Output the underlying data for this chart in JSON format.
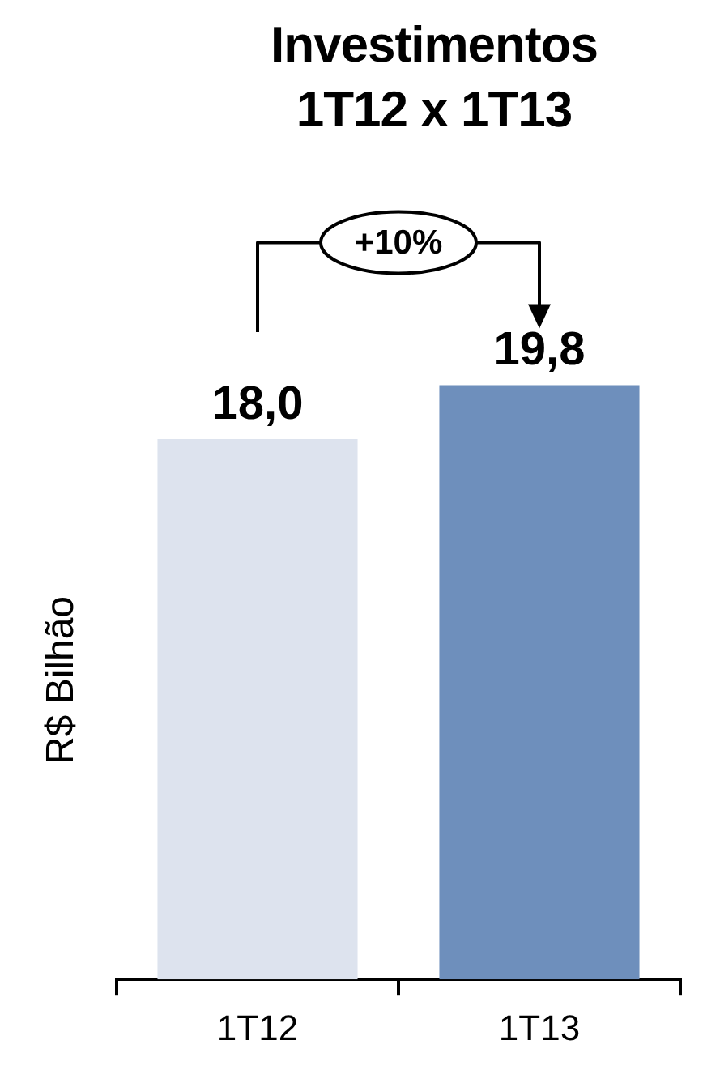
{
  "chart_data": {
    "type": "bar",
    "title": "Investimentos 1T12 x 1T13",
    "ylabel": "R$ Bilhão",
    "categories": [
      "1T12",
      "1T13"
    ],
    "values": [
      18.0,
      19.8
    ],
    "colors": [
      "#dde3ee",
      "#6e8fbc"
    ],
    "value_labels": [
      "18,0",
      "19,8"
    ],
    "tick_labels": "x",
    "grid": false,
    "legend": false,
    "annotations": [
      "+10%"
    ]
  }
}
